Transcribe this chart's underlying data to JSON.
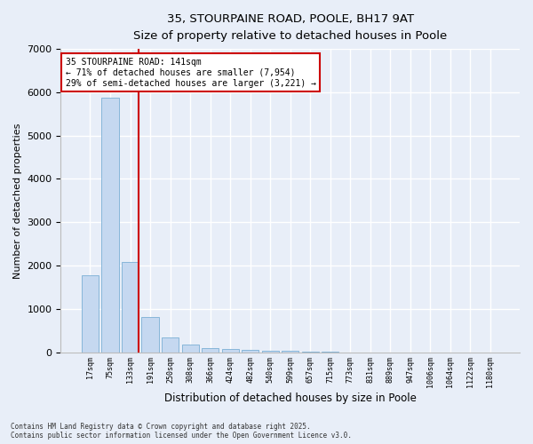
{
  "title_line1": "35, STOURPAINE ROAD, POOLE, BH17 9AT",
  "title_line2": "Size of property relative to detached houses in Poole",
  "xlabel": "Distribution of detached houses by size in Poole",
  "ylabel": "Number of detached properties",
  "categories": [
    "17sqm",
    "75sqm",
    "133sqm",
    "191sqm",
    "250sqm",
    "308sqm",
    "366sqm",
    "424sqm",
    "482sqm",
    "540sqm",
    "599sqm",
    "657sqm",
    "715sqm",
    "773sqm",
    "831sqm",
    "889sqm",
    "947sqm",
    "1006sqm",
    "1064sqm",
    "1122sqm",
    "1180sqm"
  ],
  "values": [
    1780,
    5870,
    2090,
    820,
    330,
    185,
    100,
    75,
    55,
    40,
    30,
    15,
    10,
    0,
    0,
    0,
    0,
    0,
    0,
    0,
    0
  ],
  "bar_color": "#c5d8f0",
  "bar_edge_color": "#7aafd4",
  "vline_color": "#cc0000",
  "annotation_title": "35 STOURPAINE ROAD: 141sqm",
  "annotation_line1": "← 71% of detached houses are smaller (7,954)",
  "annotation_line2": "29% of semi-detached houses are larger (3,221) →",
  "annotation_box_edgecolor": "#cc0000",
  "ylim": [
    0,
    7000
  ],
  "yticks": [
    0,
    1000,
    2000,
    3000,
    4000,
    5000,
    6000,
    7000
  ],
  "background_color": "#e8eef8",
  "plot_bg_color": "#e8eef8",
  "grid_color": "#ffffff",
  "footer_line1": "Contains HM Land Registry data © Crown copyright and database right 2025.",
  "footer_line2": "Contains public sector information licensed under the Open Government Licence v3.0."
}
